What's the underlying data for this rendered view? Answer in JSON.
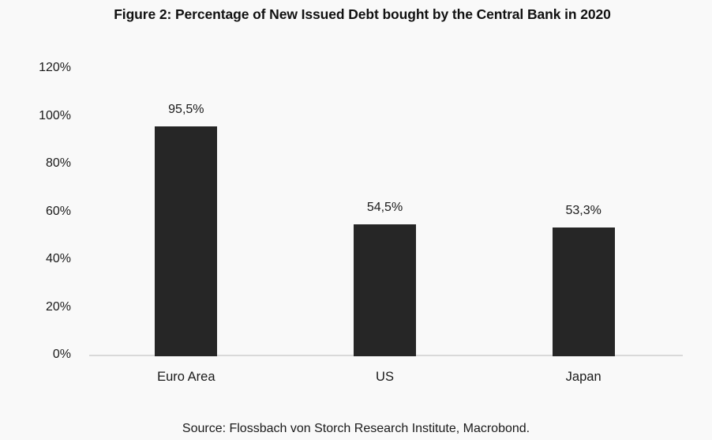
{
  "chart_data": {
    "type": "bar",
    "title": "Figure 2: Percentage of New Issued Debt bought by the Central Bank in 2020",
    "categories": [
      "Euro Area",
      "US",
      "Japan"
    ],
    "values": [
      95.5,
      54.5,
      53.3
    ],
    "value_labels": [
      "95,5%",
      "54,5%",
      "53,3%"
    ],
    "ylim": [
      0,
      120
    ],
    "yticks": [
      0,
      20,
      40,
      60,
      80,
      100,
      120
    ],
    "ytick_labels": [
      "0%",
      "20%",
      "40%",
      "60%",
      "80%",
      "100%",
      "120%"
    ],
    "grid": false,
    "legend": false,
    "source": "Source: Flossbach von Storch Research Institute, Macrobond.",
    "colors": {
      "bar": "#262626",
      "axis_line": "#d9d9d9",
      "background": "#f9f9f9",
      "text": "#1a1a1a"
    }
  }
}
